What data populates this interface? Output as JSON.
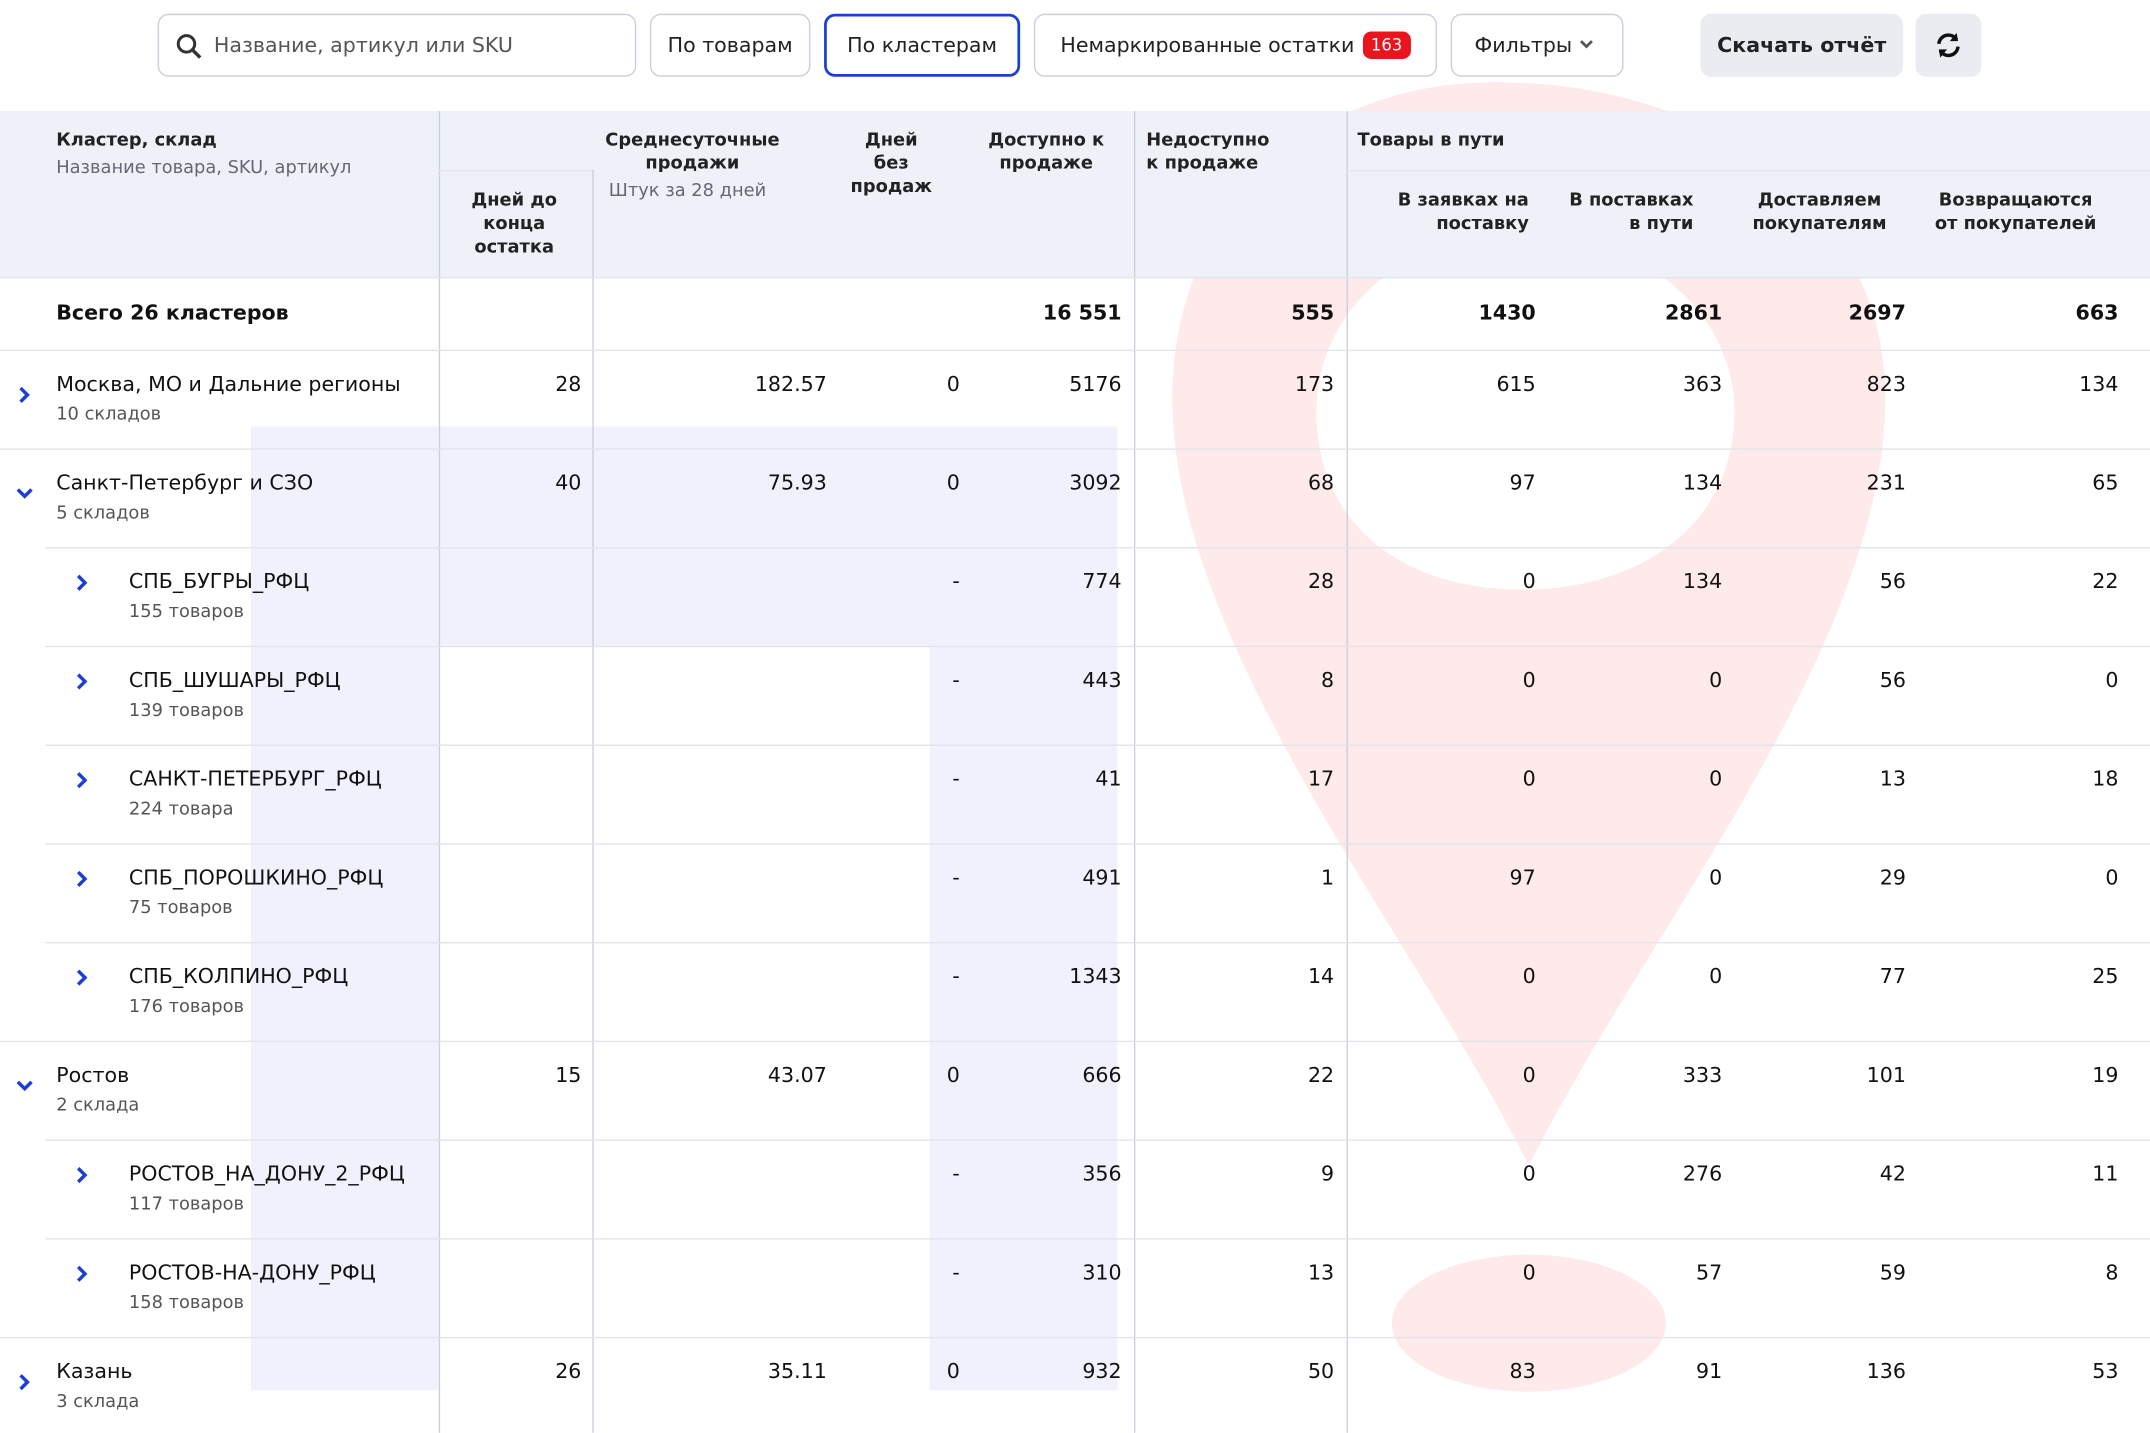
{
  "toolbar": {
    "search_placeholder": "Название, артикул или SKU",
    "tabs": [
      "По товарам",
      "По кластерам",
      "Немаркированные остатки"
    ],
    "unmarked_badge": "163",
    "filters": "Фильтры",
    "download": "Скачать отчёт"
  },
  "table": {
    "headers": {
      "cluster": "Кластер, склад",
      "cluster_sub": "Название товара, SKU, артикул",
      "days_left": "Дней до конца остатка",
      "avg_sales": "Среднесуточные продажи",
      "avg_sales_sub": "Штук за 28 дней",
      "days_no_sales": "Дней без продаж",
      "available": "Доступно к продаже",
      "unavailable": "Недоступно к продаже",
      "in_transit": "Товары в пути",
      "in_requests": "В заявках на поставку",
      "in_supplies": "В поставках в пути",
      "delivering": "Доставляем покупателям",
      "returning": "Возвращаются от покупателей"
    },
    "total": {
      "name": "Всего 26 кластеров",
      "available": "16 551",
      "unavailable": "555",
      "in_requests": "1430",
      "in_supplies": "2861",
      "delivering": "2697",
      "returning": "663"
    },
    "clusters": [
      {
        "name": "Москва, МО и Дальние регионы",
        "sub": "10 складов",
        "days_left": "28",
        "avg_sales": "182.57",
        "days_no_sales": "0",
        "available": "5176",
        "unavailable": "173",
        "in_requests": "615",
        "in_supplies": "363",
        "delivering": "823",
        "returning": "134",
        "warehouses": []
      },
      {
        "name": "Санкт-Петербург и СЗО",
        "sub": "5 складов",
        "days_left": "40",
        "avg_sales": "75.93",
        "days_no_sales": "0",
        "available": "3092",
        "unavailable": "68",
        "in_requests": "97",
        "in_supplies": "134",
        "delivering": "231",
        "returning": "65",
        "warehouses": [
          {
            "name": "СПБ_БУГРЫ_РФЦ",
            "sub": "155 товаров",
            "days_no_sales": "-",
            "available": "774",
            "unavailable": "28",
            "in_requests": "0",
            "in_supplies": "134",
            "delivering": "56",
            "returning": "22"
          },
          {
            "name": "СПБ_ШУШАРЫ_РФЦ",
            "sub": "139 товаров",
            "days_no_sales": "-",
            "available": "443",
            "unavailable": "8",
            "in_requests": "0",
            "in_supplies": "0",
            "delivering": "56",
            "returning": "0"
          },
          {
            "name": "САНКТ-ПЕТЕРБУРГ_РФЦ",
            "sub": "224 товара",
            "days_no_sales": "-",
            "available": "41",
            "unavailable": "17",
            "in_requests": "0",
            "in_supplies": "0",
            "delivering": "13",
            "returning": "18"
          },
          {
            "name": "СПБ_ПОРОШКИНО_РФЦ",
            "sub": "75 товаров",
            "days_no_sales": "-",
            "available": "491",
            "unavailable": "1",
            "in_requests": "97",
            "in_supplies": "0",
            "delivering": "29",
            "returning": "0"
          },
          {
            "name": "СПБ_КОЛПИНО_РФЦ",
            "sub": "176 товаров",
            "days_no_sales": "-",
            "available": "1343",
            "unavailable": "14",
            "in_requests": "0",
            "in_supplies": "0",
            "delivering": "77",
            "returning": "25"
          }
        ]
      },
      {
        "name": "Ростов",
        "sub": "2 склада",
        "days_left": "15",
        "avg_sales": "43.07",
        "days_no_sales": "0",
        "available": "666",
        "unavailable": "22",
        "in_requests": "0",
        "in_supplies": "333",
        "delivering": "101",
        "returning": "19",
        "warehouses": [
          {
            "name": "РОСТОВ_НА_ДОНУ_2_РФЦ",
            "sub": "117 товаров",
            "days_no_sales": "-",
            "available": "356",
            "unavailable": "9",
            "in_requests": "0",
            "in_supplies": "276",
            "delivering": "42",
            "returning": "11"
          },
          {
            "name": "РОСТОВ-НА-ДОНУ_РФЦ",
            "sub": "158 товаров",
            "days_no_sales": "-",
            "available": "310",
            "unavailable": "13",
            "in_requests": "0",
            "in_supplies": "57",
            "delivering": "59",
            "returning": "8"
          }
        ]
      },
      {
        "name": "Казань",
        "sub": "3 склада",
        "days_left": "26",
        "avg_sales": "35.11",
        "days_no_sales": "0",
        "available": "932",
        "unavailable": "50",
        "in_requests": "83",
        "in_supplies": "91",
        "delivering": "136",
        "returning": "53",
        "warehouses": []
      }
    ]
  }
}
